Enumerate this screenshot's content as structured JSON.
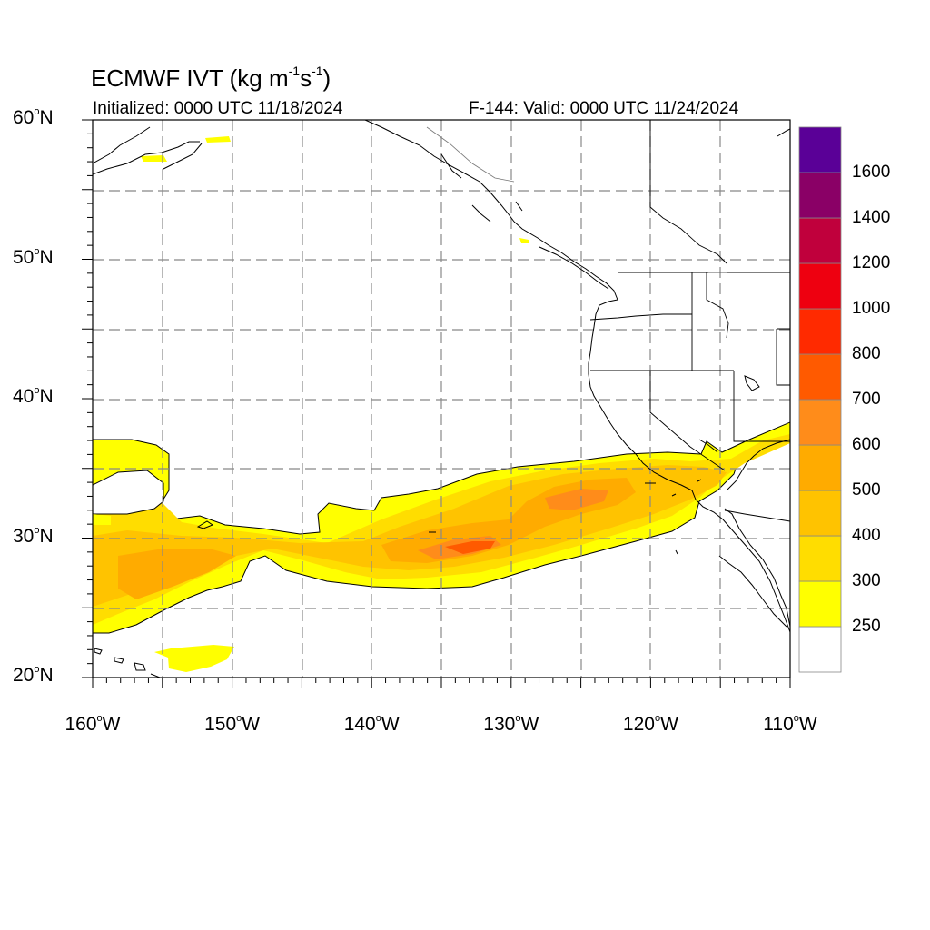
{
  "header": {
    "title_prefix": "ECMWF IVT (kg m",
    "title_exp1": "-1",
    "title_mid": "s",
    "title_exp2": "-1",
    "title_suffix": ")",
    "initialized": "Initialized: 0000 UTC 11/18/2024",
    "valid": "F-144: Valid: 0000 UTC 11/24/2024"
  },
  "axes": {
    "lat_labels": [
      {
        "num": "60",
        "suffix": "N"
      },
      {
        "num": "50",
        "suffix": "N"
      },
      {
        "num": "40",
        "suffix": "N"
      },
      {
        "num": "30",
        "suffix": "N"
      },
      {
        "num": "20",
        "suffix": "N"
      }
    ],
    "lon_labels": [
      {
        "num": "160",
        "suffix": "W"
      },
      {
        "num": "150",
        "suffix": "W"
      },
      {
        "num": "140",
        "suffix": "W"
      },
      {
        "num": "130",
        "suffix": "W"
      },
      {
        "num": "120",
        "suffix": "W"
      },
      {
        "num": "110",
        "suffix": "W"
      }
    ],
    "degree_symbol": "o"
  },
  "map_extent": {
    "lat_min": 20,
    "lat_max": 60,
    "lon_min": -160,
    "lon_max": -110
  },
  "colorbar": {
    "labels": [
      "250",
      "300",
      "400",
      "500",
      "600",
      "700",
      "800",
      "1000",
      "1200",
      "1400",
      "1600"
    ],
    "colors": [
      "#ffffff",
      "#ffff00",
      "#ffdd00",
      "#ffc300",
      "#ffab00",
      "#ff8c1a",
      "#ff5a00",
      "#ff2a00",
      "#ee0010",
      "#c0003c",
      "#8a0066",
      "#5a0097"
    ]
  }
}
